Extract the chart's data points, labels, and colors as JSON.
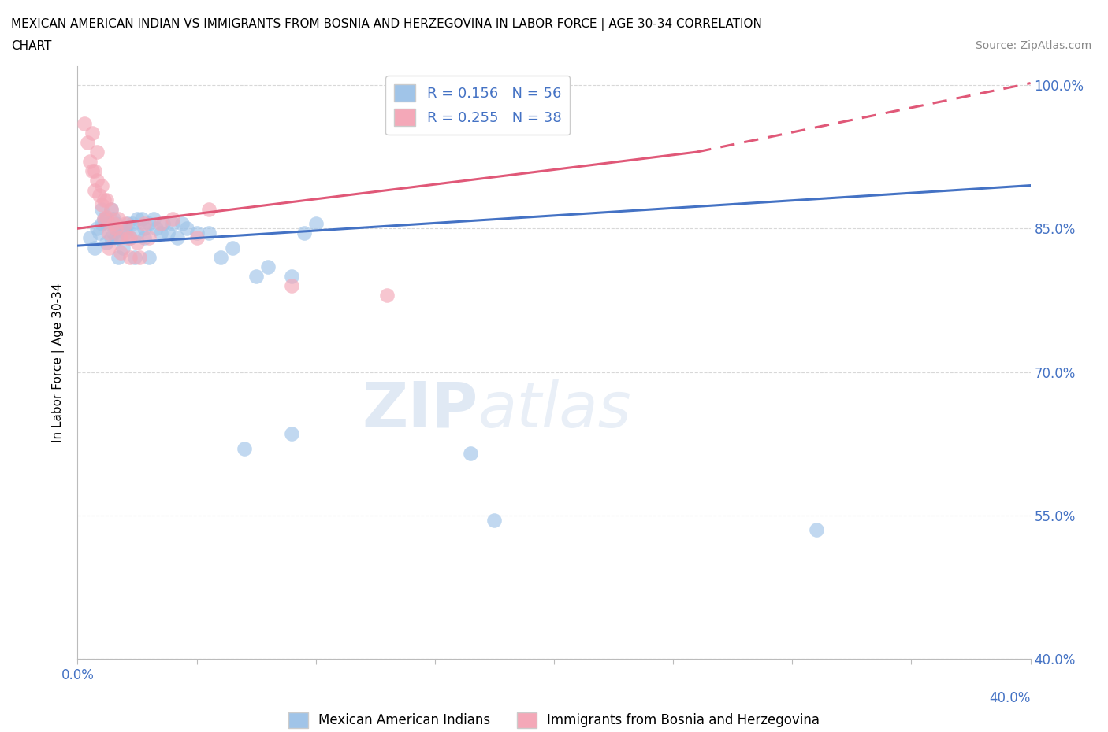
{
  "title_line1": "MEXICAN AMERICAN INDIAN VS IMMIGRANTS FROM BOSNIA AND HERZEGOVINA IN LABOR FORCE | AGE 30-34 CORRELATION",
  "title_line2": "CHART",
  "source_text": "Source: ZipAtlas.com",
  "ylabel": "In Labor Force | Age 30-34",
  "watermark_zip": "ZIP",
  "watermark_atlas": "atlas",
  "xlim": [
    0.0,
    0.4
  ],
  "ylim": [
    0.4,
    1.02
  ],
  "x_ticks": [
    0.0,
    0.05,
    0.1,
    0.15,
    0.2,
    0.25,
    0.3,
    0.35,
    0.4
  ],
  "x_tick_labels_show": {
    "0.0": "0.0%",
    "0.40": "40.0%"
  },
  "y_ticks": [
    0.4,
    0.55,
    0.7,
    0.85,
    1.0
  ],
  "y_tick_labels": [
    "40.0%",
    "55.0%",
    "70.0%",
    "85.0%",
    "100.0%"
  ],
  "blue_color": "#a0c4e8",
  "pink_color": "#f4a8b8",
  "blue_line_color": "#4472c4",
  "pink_line_color": "#e05878",
  "bg_color": "#ffffff",
  "grid_color": "#d8d8d8",
  "legend_label_blue": "R = 0.156   N = 56",
  "legend_label_pink": "R = 0.255   N = 38",
  "bottom_legend_blue": "Mexican American Indians",
  "bottom_legend_pink": "Immigrants from Bosnia and Herzegovina",
  "blue_trend": [
    0.0,
    0.4,
    0.832,
    0.895
  ],
  "pink_solid_trend": [
    0.0,
    0.26,
    0.85,
    0.93
  ],
  "pink_dashed_trend": [
    0.26,
    0.4,
    0.93,
    1.002
  ],
  "blue_scatter": [
    [
      0.005,
      0.84
    ],
    [
      0.007,
      0.83
    ],
    [
      0.008,
      0.85
    ],
    [
      0.009,
      0.845
    ],
    [
      0.01,
      0.87
    ],
    [
      0.01,
      0.855
    ],
    [
      0.011,
      0.86
    ],
    [
      0.012,
      0.86
    ],
    [
      0.012,
      0.835
    ],
    [
      0.013,
      0.855
    ],
    [
      0.014,
      0.87
    ],
    [
      0.014,
      0.84
    ],
    [
      0.015,
      0.86
    ],
    [
      0.015,
      0.845
    ],
    [
      0.016,
      0.855
    ],
    [
      0.016,
      0.84
    ],
    [
      0.017,
      0.84
    ],
    [
      0.017,
      0.82
    ],
    [
      0.018,
      0.85
    ],
    [
      0.019,
      0.83
    ],
    [
      0.02,
      0.85
    ],
    [
      0.02,
      0.845
    ],
    [
      0.021,
      0.855
    ],
    [
      0.022,
      0.84
    ],
    [
      0.023,
      0.855
    ],
    [
      0.024,
      0.82
    ],
    [
      0.025,
      0.86
    ],
    [
      0.025,
      0.845
    ],
    [
      0.027,
      0.86
    ],
    [
      0.028,
      0.84
    ],
    [
      0.028,
      0.85
    ],
    [
      0.03,
      0.855
    ],
    [
      0.03,
      0.82
    ],
    [
      0.032,
      0.86
    ],
    [
      0.033,
      0.85
    ],
    [
      0.035,
      0.845
    ],
    [
      0.036,
      0.855
    ],
    [
      0.038,
      0.845
    ],
    [
      0.04,
      0.855
    ],
    [
      0.042,
      0.84
    ],
    [
      0.044,
      0.855
    ],
    [
      0.046,
      0.85
    ],
    [
      0.05,
      0.845
    ],
    [
      0.055,
      0.845
    ],
    [
      0.06,
      0.82
    ],
    [
      0.065,
      0.83
    ],
    [
      0.075,
      0.8
    ],
    [
      0.08,
      0.81
    ],
    [
      0.09,
      0.8
    ],
    [
      0.095,
      0.845
    ],
    [
      0.1,
      0.855
    ],
    [
      0.07,
      0.62
    ],
    [
      0.09,
      0.635
    ],
    [
      0.165,
      0.615
    ],
    [
      0.175,
      0.545
    ],
    [
      0.31,
      0.535
    ]
  ],
  "pink_scatter": [
    [
      0.003,
      0.96
    ],
    [
      0.004,
      0.94
    ],
    [
      0.005,
      0.92
    ],
    [
      0.006,
      0.95
    ],
    [
      0.006,
      0.91
    ],
    [
      0.007,
      0.91
    ],
    [
      0.007,
      0.89
    ],
    [
      0.008,
      0.93
    ],
    [
      0.008,
      0.9
    ],
    [
      0.009,
      0.885
    ],
    [
      0.01,
      0.895
    ],
    [
      0.01,
      0.875
    ],
    [
      0.011,
      0.88
    ],
    [
      0.011,
      0.86
    ],
    [
      0.012,
      0.88
    ],
    [
      0.012,
      0.862
    ],
    [
      0.013,
      0.845
    ],
    [
      0.013,
      0.83
    ],
    [
      0.014,
      0.87
    ],
    [
      0.015,
      0.855
    ],
    [
      0.016,
      0.85
    ],
    [
      0.017,
      0.86
    ],
    [
      0.018,
      0.84
    ],
    [
      0.018,
      0.825
    ],
    [
      0.02,
      0.855
    ],
    [
      0.021,
      0.84
    ],
    [
      0.022,
      0.84
    ],
    [
      0.022,
      0.82
    ],
    [
      0.025,
      0.835
    ],
    [
      0.026,
      0.82
    ],
    [
      0.028,
      0.855
    ],
    [
      0.03,
      0.84
    ],
    [
      0.035,
      0.855
    ],
    [
      0.04,
      0.86
    ],
    [
      0.05,
      0.84
    ],
    [
      0.055,
      0.87
    ],
    [
      0.09,
      0.79
    ],
    [
      0.13,
      0.78
    ]
  ]
}
